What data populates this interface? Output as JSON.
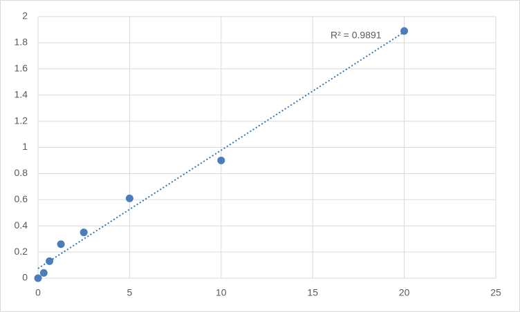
{
  "chart_data": {
    "type": "scatter",
    "annotation": "R² = 0.9891",
    "x": [
      0,
      0.313,
      0.625,
      1.25,
      2.5,
      5,
      10,
      20
    ],
    "values": [
      0,
      0.04,
      0.13,
      0.26,
      0.35,
      0.61,
      0.9,
      1.89
    ],
    "color": "#4a7ebb",
    "trendline": "linear",
    "trendline_color": "#2e75b6",
    "xlim": [
      0,
      25
    ],
    "xticks": [
      0,
      5,
      10,
      15,
      20,
      25
    ],
    "ylim": [
      0,
      2
    ],
    "yticks": [
      0,
      0.2,
      0.4,
      0.6,
      0.8,
      1,
      1.2,
      1.4,
      1.6,
      1.8,
      2
    ],
    "grid": true
  }
}
